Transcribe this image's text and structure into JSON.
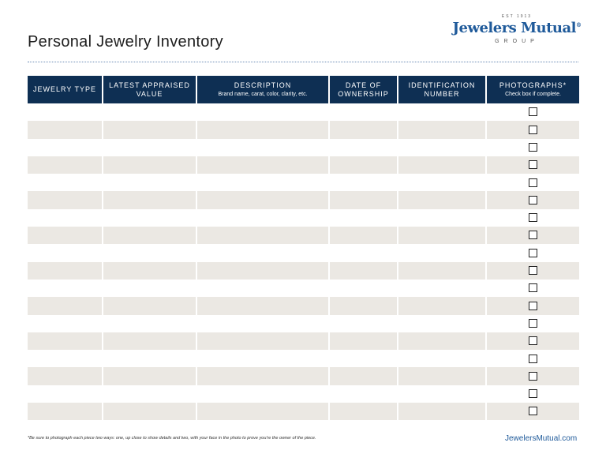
{
  "title": "Personal Jewelry Inventory",
  "logo": {
    "est": "EST 1913",
    "name": "Jewelers Mutual",
    "reg": "®",
    "group": "GROUP"
  },
  "columns": [
    {
      "label": "JEWELRY TYPE",
      "sub": ""
    },
    {
      "label": "LATEST APPRAISED VALUE",
      "sub": ""
    },
    {
      "label": "DESCRIPTION",
      "sub": "Brand name, carat, color, clarity, etc."
    },
    {
      "label": "DATE OF OWNERSHIP",
      "sub": ""
    },
    {
      "label": "IDENTIFICATION NUMBER",
      "sub": ""
    },
    {
      "label": "PHOTOGRAPHS*",
      "sub": "Check box if complete."
    }
  ],
  "row_count": 18,
  "colors": {
    "header": "#0e2f53",
    "stripe": "#ebe8e3",
    "brand": "#1f5a9a"
  },
  "footnote": "*Be sure to photograph each piece two ways: one, up close to show details and two, with your face in the photo to prove you're the owner of the piece.",
  "url": "JewelersMutual.com"
}
